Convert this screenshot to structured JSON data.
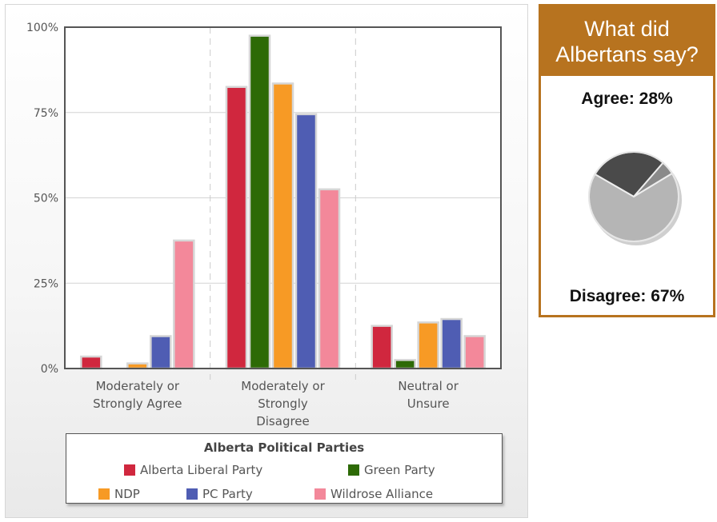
{
  "chart_data": {
    "type": "bar",
    "categories": [
      [
        "Moderately or",
        "Strongly Agree"
      ],
      [
        "Moderately or",
        "Strongly",
        "Disagree"
      ],
      [
        "Neutral or",
        "Unsure"
      ]
    ],
    "series": [
      {
        "name": "Alberta Liberal Party",
        "color": "#d0273e",
        "values": [
          3.5,
          82.5,
          12.5
        ]
      },
      {
        "name": "Green Party",
        "color": "#2d6a06",
        "values": [
          0,
          97.5,
          2.5
        ]
      },
      {
        "name": "NDP",
        "color": "#f79a25",
        "values": [
          1.5,
          83.5,
          13.5
        ]
      },
      {
        "name": "PC Party",
        "color": "#4f5db3",
        "values": [
          9.5,
          74.5,
          14.5
        ]
      },
      {
        "name": "Wildrose Alliance",
        "color": "#f3889a",
        "values": [
          37.5,
          52.5,
          9.5
        ]
      }
    ],
    "ylim": [
      0,
      100
    ],
    "yticks": [
      0,
      25,
      50,
      75,
      100
    ],
    "ytick_labels": [
      "0%",
      "25%",
      "50%",
      "75%",
      "100%"
    ],
    "grid": true,
    "legend": {
      "title": "Alberta Political Parties",
      "placement": "bottom"
    }
  },
  "summary": {
    "title_lines": [
      "What did",
      "Albertans say?"
    ],
    "agree_text": "Agree: 28%",
    "disagree_text": "Disagree: 67%",
    "pie": {
      "type": "pie",
      "slices": [
        {
          "label": "Agree",
          "value": 28,
          "color": "#4a4a4a"
        },
        {
          "label": "Neutral",
          "value": 5,
          "color": "#8a8a8a"
        },
        {
          "label": "Disagree",
          "value": 67,
          "color": "#b5b5b5"
        }
      ]
    }
  }
}
